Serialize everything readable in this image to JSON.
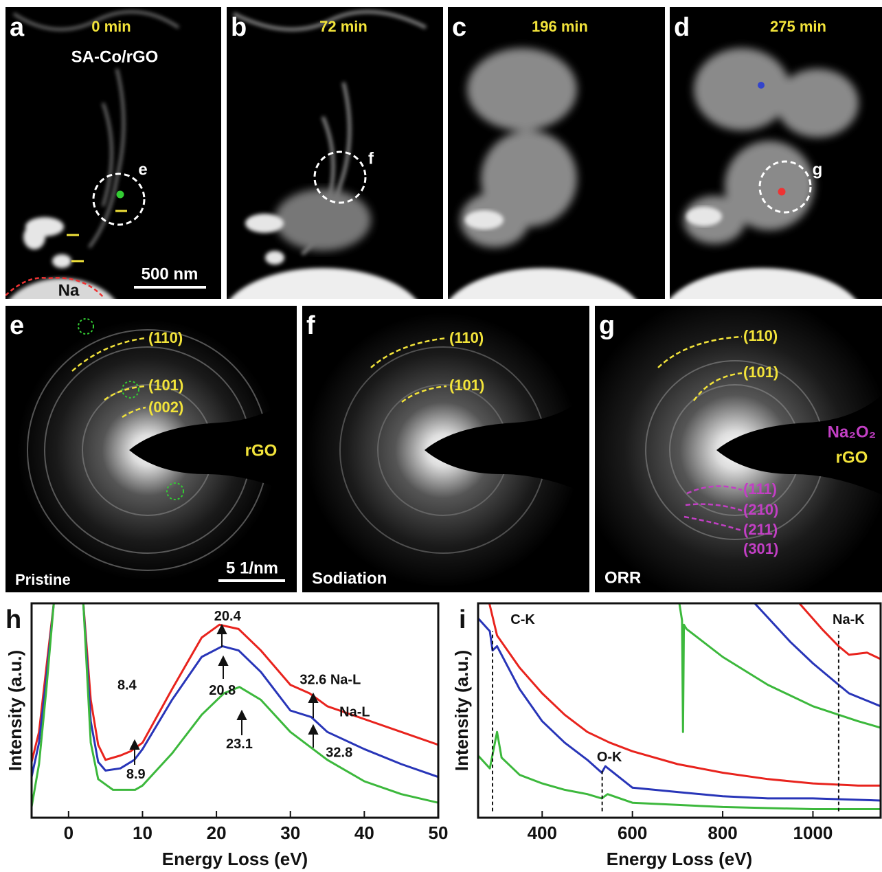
{
  "figure": {
    "a": {
      "label": "a",
      "time": "0 min",
      "sample": "SA-Co/rGO",
      "region": "e",
      "scale_bar": "500 nm",
      "substrate": "Na"
    },
    "b": {
      "label": "b",
      "time": "72 min",
      "region": "f"
    },
    "c": {
      "label": "c",
      "time": "196 min"
    },
    "d": {
      "label": "d",
      "time": "275 min",
      "region": "g"
    },
    "e": {
      "label": "e",
      "rings": [
        "(110)",
        "(101)",
        "(002)"
      ],
      "phase": "rGO",
      "scale_bar": "5 1/nm",
      "condition": "Pristine"
    },
    "f": {
      "label": "f",
      "rings": [
        "(110)",
        "(101)"
      ],
      "condition": "Sodiation"
    },
    "g": {
      "label": "g",
      "rings": [
        "(110)",
        "(101)"
      ],
      "phases": [
        "Na₂O₂",
        "rGO"
      ],
      "na2o2_rings": [
        "(111)",
        "(210)",
        "(211)",
        "(301)"
      ],
      "condition": "ORR"
    }
  },
  "chart_data": [
    {
      "type": "line",
      "panel_label": "h",
      "xlabel": "Energy Loss (eV)",
      "ylabel": "Intensity (a.u.)",
      "xlim": [
        -5,
        50
      ],
      "xticks": [
        0,
        10,
        20,
        30,
        40,
        50
      ],
      "ylim": [
        0,
        100
      ],
      "series": [
        {
          "color": "#e8231d",
          "x": [
            -5,
            -4,
            -3,
            -2,
            2,
            3,
            4,
            5,
            7,
            8.4,
            10,
            14,
            18,
            20.4,
            23,
            26,
            30,
            32.6,
            35,
            40,
            45,
            50
          ],
          "values": [
            26,
            40,
            70,
            100,
            100,
            55,
            34,
            27,
            29,
            31,
            35,
            60,
            84,
            90,
            88,
            78,
            62,
            58,
            52,
            46,
            40,
            34
          ]
        },
        {
          "color": "#2835b8",
          "x": [
            -5,
            -4,
            -3,
            -2,
            2,
            3,
            4,
            5,
            7,
            8.9,
            10,
            14,
            18,
            20.8,
            23,
            26,
            30,
            32.8,
            35,
            40,
            45,
            50
          ],
          "values": [
            19,
            35,
            65,
            100,
            100,
            45,
            26,
            22,
            23,
            27,
            32,
            55,
            75,
            80,
            78,
            68,
            50,
            47,
            40,
            32,
            25,
            19
          ]
        },
        {
          "color": "#3cb83c",
          "x": [
            -5,
            -4,
            -3,
            -2,
            2,
            3,
            4,
            6,
            9,
            10,
            14,
            18,
            21,
            23.1,
            26,
            30,
            35,
            40,
            45,
            50
          ],
          "values": [
            5,
            25,
            60,
            100,
            100,
            35,
            18,
            13,
            13,
            15,
            30,
            48,
            58,
            61,
            55,
            40,
            27,
            17,
            11,
            7
          ]
        }
      ],
      "annotations": [
        {
          "text": "20.4",
          "x": 21.5,
          "y": 93.6
        },
        {
          "text": "20.8",
          "x": 20.8,
          "y": 59
        },
        {
          "text": "8.4",
          "x": 7.9,
          "y": 61.5
        },
        {
          "text": "8.9",
          "x": 9.1,
          "y": 20
        },
        {
          "text": "32.6 Na-L",
          "x": 35.4,
          "y": 64
        },
        {
          "text": "Na-L",
          "x": 38.7,
          "y": 49
        },
        {
          "text": "32.8",
          "x": 36.6,
          "y": 30
        },
        {
          "text": "23.1",
          "x": 23.1,
          "y": 34
        }
      ]
    },
    {
      "type": "line",
      "panel_label": "i",
      "xlabel": "Energy Loss (eV)",
      "ylabel": "Intensity (a.u.)",
      "xlim": [
        258,
        1150
      ],
      "xticks": [
        400,
        600,
        800,
        1000
      ],
      "ylim": [
        0,
        100
      ],
      "series": [
        {
          "color": "#e8231d",
          "x": [
            283,
            300,
            350,
            400,
            450,
            500,
            550,
            600,
            700,
            800,
            900,
            1000,
            1100,
            1150
          ],
          "values": [
            100,
            85,
            70,
            58,
            48,
            40,
            35,
            31,
            25,
            21,
            18,
            16,
            15,
            15
          ]
        },
        {
          "color": "#2835b8",
          "x": [
            258,
            284,
            290,
            300,
            350,
            400,
            450,
            500,
            532,
            540,
            600,
            700,
            800,
            900,
            1000,
            1150
          ],
          "values": [
            93,
            87,
            78,
            80,
            60,
            45,
            35,
            27,
            21,
            24,
            14,
            12,
            10,
            9,
            9,
            8
          ]
        },
        {
          "color": "#3cb83c",
          "x": [
            258,
            284,
            300,
            310,
            350,
            400,
            450,
            500,
            532,
            545,
            600,
            800,
            1000,
            1150
          ],
          "values": [
            29,
            23,
            40,
            28,
            20,
            16,
            13,
            11,
            9,
            11,
            7,
            5,
            4,
            4
          ]
        },
        {
          "color": "#3cb83c",
          "x": [
            704,
            710,
            712,
            714,
            720,
            800,
            900,
            1000,
            1100,
            1150
          ],
          "values": [
            100,
            92,
            40,
            90,
            88,
            75,
            62,
            52,
            45,
            42
          ]
        },
        {
          "color": "#2835b8",
          "x": [
            871,
            950,
            1000,
            1057,
            1080,
            1150
          ],
          "values": [
            100,
            82,
            72,
            62,
            58,
            52
          ]
        },
        {
          "color": "#e8231d",
          "x": [
            970,
            1020,
            1057,
            1080,
            1120,
            1150
          ],
          "values": [
            100,
            88,
            80,
            76,
            77,
            74
          ]
        }
      ],
      "edges": [
        {
          "text": "C-K",
          "x": 290,
          "text_x": 357,
          "text_y": 92
        },
        {
          "text": "O-K",
          "x": 533,
          "text_x": 549,
          "text_y": 28
        },
        {
          "text": "Na-K",
          "x": 1057,
          "text_x": 1079,
          "text_y": 92
        }
      ]
    }
  ]
}
